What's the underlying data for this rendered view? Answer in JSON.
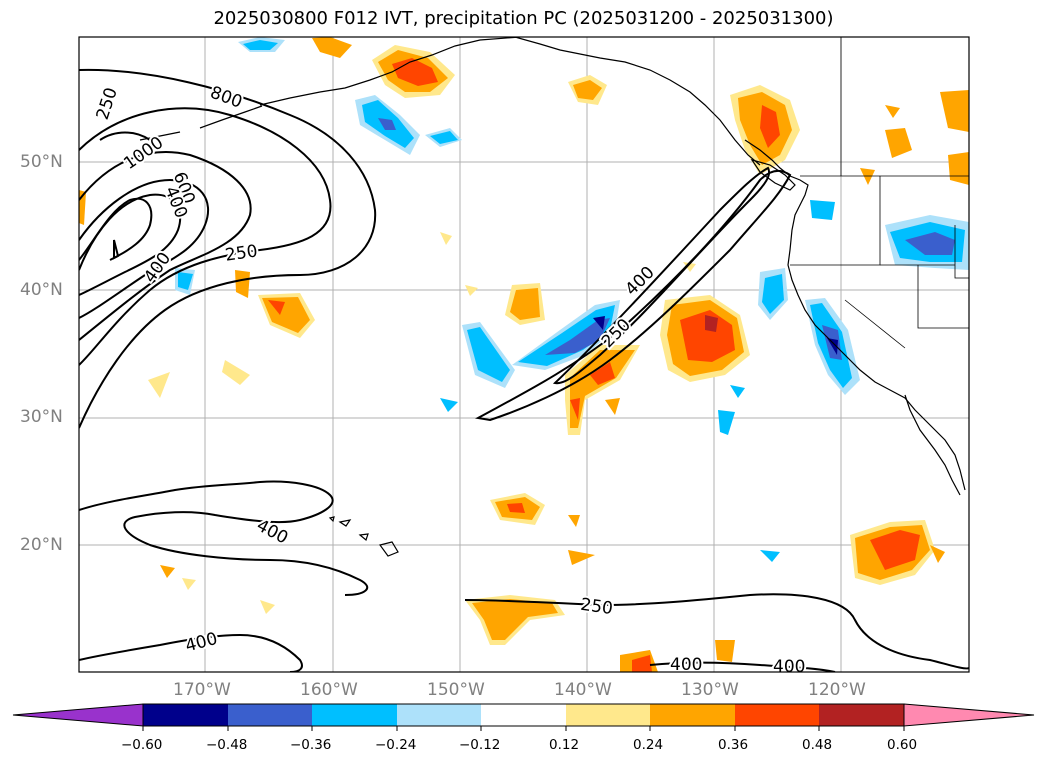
{
  "title": "2025030800 F012 IVT, precipitation PC (2025031200 - 2025031300)",
  "map": {
    "lat_labels": [
      "50°N",
      "40°N",
      "30°N",
      "20°N"
    ],
    "lon_labels": [
      "170°W",
      "160°W",
      "150°W",
      "140°W",
      "130°W",
      "120°W"
    ],
    "contour_labels": [
      "250",
      "800",
      "1000",
      "600",
      "400",
      "250",
      "400",
      "250",
      "400",
      "400",
      "400",
      "250",
      "400",
      "400"
    ],
    "colors": {
      "neg_extreme": "#9932CC",
      "neg_060": "#00008B",
      "neg_048": "#3A5FCD",
      "neg_036": "#00BFFF",
      "neg_024": "#ADE1FA",
      "neutral": "#FFFFFF",
      "pos_012": "#FFE88C",
      "pos_024": "#FFA500",
      "pos_036": "#FF4500",
      "pos_048": "#B22222",
      "pos_extreme": "#FF89B0"
    }
  },
  "colorbar": {
    "ticks": [
      "−0.60",
      "−0.48",
      "−0.36",
      "−0.24",
      "−0.12",
      "0.12",
      "0.24",
      "0.36",
      "0.48",
      "0.60"
    ],
    "colors": [
      "#9932CC",
      "#00008B",
      "#3A5FCD",
      "#00BFFF",
      "#ADE1FA",
      "#FFFFFF",
      "#FFE88C",
      "#FFA500",
      "#FF4500",
      "#B22222",
      "#FF89B0"
    ]
  }
}
